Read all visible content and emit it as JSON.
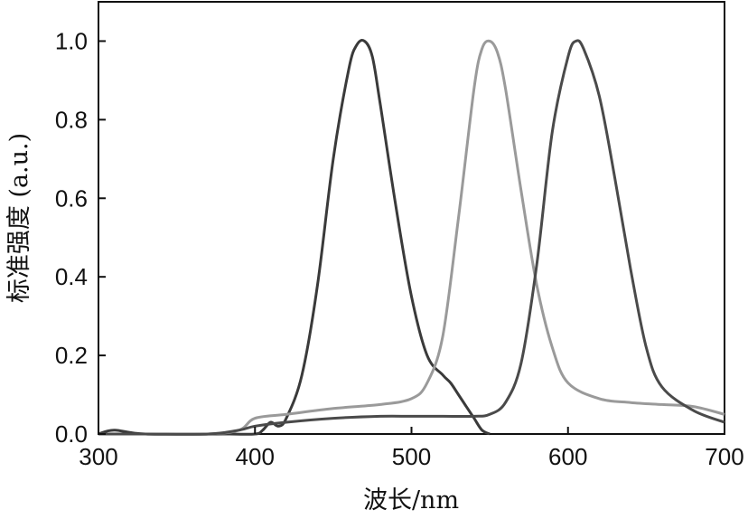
{
  "chart_data": {
    "type": "line",
    "xlabel": "波长/nm",
    "ylabel": "标准强度 (a.u.)",
    "xlim": [
      300,
      700
    ],
    "ylim": [
      0,
      1.1
    ],
    "x_ticks": [
      300,
      400,
      500,
      600,
      700
    ],
    "x_tick_labels": [
      "300",
      "400",
      "500",
      "600",
      "700"
    ],
    "y_ticks": [
      0.0,
      0.2,
      0.4,
      0.6,
      0.8,
      1.0
    ],
    "y_tick_labels": [
      "0.0",
      "0.2",
      "0.4",
      "0.6",
      "0.8",
      "1.0"
    ],
    "grid": false,
    "legend": "none",
    "series": [
      {
        "color": "#3a3a3a",
        "x": [
          300,
          310,
          330,
          380,
          400,
          405,
          410,
          415,
          420,
          430,
          440,
          450,
          460,
          465,
          470,
          475,
          480,
          490,
          500,
          510,
          520,
          525,
          530,
          535,
          540,
          545,
          550
        ],
        "y": [
          0.0,
          0.01,
          0.0,
          0.0,
          0.0,
          0.01,
          0.03,
          0.02,
          0.04,
          0.15,
          0.38,
          0.7,
          0.93,
          0.99,
          1.0,
          0.96,
          0.84,
          0.58,
          0.35,
          0.2,
          0.15,
          0.13,
          0.1,
          0.07,
          0.04,
          0.01,
          0.0
        ]
      },
      {
        "color": "#9a9a9a",
        "x": [
          300,
          330,
          370,
          390,
          400,
          420,
          450,
          480,
          500,
          510,
          520,
          530,
          540,
          545,
          550,
          555,
          560,
          570,
          580,
          590,
          600,
          620,
          640,
          660,
          680,
          700
        ],
        "y": [
          0.0,
          0.0,
          0.0,
          0.01,
          0.04,
          0.05,
          0.065,
          0.075,
          0.09,
          0.13,
          0.25,
          0.55,
          0.88,
          0.98,
          1.0,
          0.97,
          0.88,
          0.62,
          0.38,
          0.22,
          0.13,
          0.09,
          0.08,
          0.075,
          0.07,
          0.05
        ]
      },
      {
        "color": "#4a4a4a",
        "x": [
          300,
          330,
          370,
          390,
          400,
          420,
          450,
          480,
          500,
          520,
          540,
          550,
          560,
          570,
          580,
          590,
          600,
          605,
          610,
          620,
          630,
          640,
          650,
          660,
          680,
          700
        ],
        "y": [
          0.0,
          0.0,
          0.0,
          0.01,
          0.02,
          0.03,
          0.04,
          0.045,
          0.045,
          0.045,
          0.045,
          0.05,
          0.08,
          0.18,
          0.43,
          0.77,
          0.96,
          1.0,
          0.98,
          0.86,
          0.65,
          0.42,
          0.22,
          0.12,
          0.06,
          0.03
        ]
      }
    ]
  }
}
